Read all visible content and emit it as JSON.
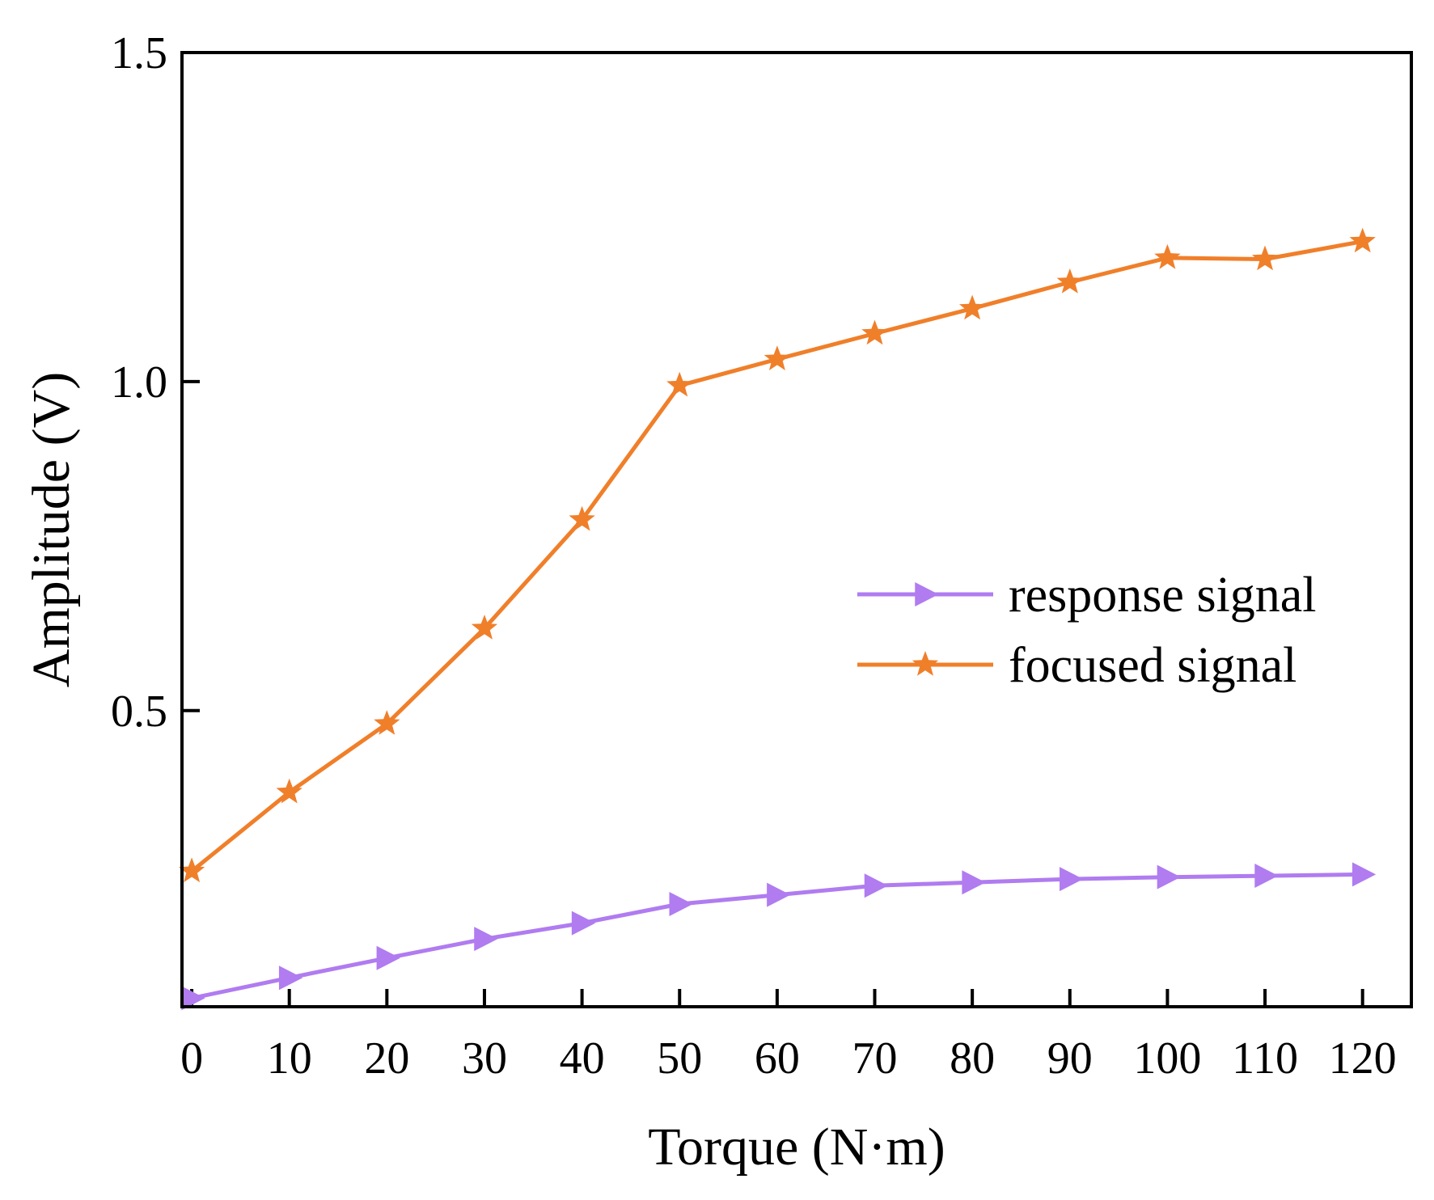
{
  "chart_data": {
    "type": "line",
    "xlabel": "Torque (N·m)",
    "ylabel": "Amplitude (V)",
    "x": [
      0,
      10,
      20,
      30,
      40,
      50,
      60,
      70,
      80,
      90,
      100,
      110,
      120
    ],
    "xlim": [
      -1,
      125
    ],
    "ylim": [
      0.05,
      1.5
    ],
    "x_ticks": [
      "0",
      "10",
      "20",
      "30",
      "40",
      "50",
      "60",
      "70",
      "80",
      "90",
      "100",
      "110",
      "120"
    ],
    "y_ticks": [
      {
        "value": 0.5,
        "label": "0.5"
      },
      {
        "value": 1.0,
        "label": "1.0"
      },
      {
        "value": 1.5,
        "label": "1.5"
      }
    ],
    "grid": false,
    "legend_position": "center-right",
    "series": [
      {
        "name": "response signal",
        "color": "#b07cf0",
        "marker": "right-triangle",
        "values": [
          0.063,
          0.094,
          0.124,
          0.153,
          0.177,
          0.206,
          0.22,
          0.234,
          0.239,
          0.244,
          0.247,
          0.249,
          0.251
        ]
      },
      {
        "name": "focused signal",
        "color": "#f07f2a",
        "marker": "star",
        "values": [
          0.256,
          0.376,
          0.48,
          0.625,
          0.79,
          0.994,
          1.034,
          1.073,
          1.111,
          1.151,
          1.188,
          1.186,
          1.213
        ]
      }
    ]
  }
}
